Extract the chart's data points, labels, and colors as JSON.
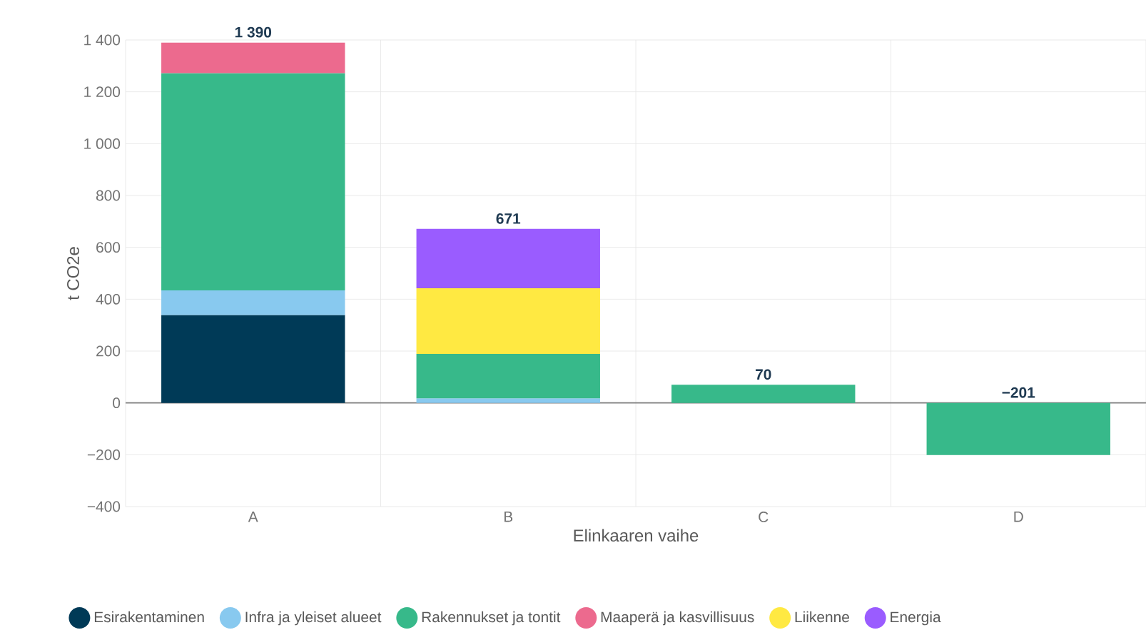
{
  "chart_data": {
    "type": "bar",
    "stacked": true,
    "xlabel": "Elinkaaren vaihe",
    "ylabel": "t CO2e",
    "categories": [
      "A",
      "B",
      "C",
      "D"
    ],
    "series": [
      {
        "name": "Esirakentaminen",
        "color": "#003a57",
        "values": [
          339,
          null,
          null,
          null
        ]
      },
      {
        "name": "Infra ja yleiset alueet",
        "color": "#88c9ef",
        "values": [
          95,
          18,
          null,
          null
        ]
      },
      {
        "name": "Rakennukset ja tontit",
        "color": "#37b98a",
        "values": [
          838,
          171,
          70,
          -201
        ]
      },
      {
        "name": "Maaperä ja kasvillisuus",
        "color": "#ec6a8e",
        "values": [
          118,
          null,
          null,
          null
        ]
      },
      {
        "name": "Liikenne",
        "color": "#ffe942",
        "values": [
          null,
          253,
          null,
          null
        ]
      },
      {
        "name": "Energia",
        "color": "#9a5cff",
        "values": [
          null,
          229,
          null,
          null
        ]
      }
    ],
    "totals": [
      "1 390",
      "671",
      "70",
      "−201"
    ],
    "ylim": [
      -400,
      1400
    ],
    "yticks": [
      {
        "value": -400,
        "label": "−400"
      },
      {
        "value": -200,
        "label": "−200"
      },
      0,
      200,
      400,
      600,
      800,
      {
        "value": 1000,
        "label": "1 000"
      },
      {
        "value": 1200,
        "label": "1 200"
      },
      {
        "value": 1400,
        "label": "1 400"
      }
    ],
    "grid": true,
    "legend": "bottom"
  }
}
